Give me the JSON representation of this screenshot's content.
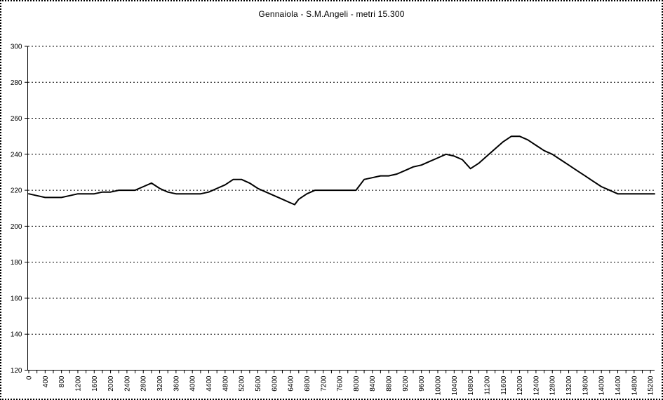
{
  "window": {
    "background_color": "#ffffff",
    "border_color": "#000000",
    "border_style": "dotted"
  },
  "chart_data": {
    "type": "line",
    "title": "Gennaiola - S.M.Angeli - metri 15.300",
    "xlabel": "",
    "ylabel": "",
    "xlim": [
      0,
      15300
    ],
    "ylim": [
      120,
      300
    ],
    "y_ticks": [
      300,
      280,
      260,
      240,
      220,
      200,
      180,
      160,
      140,
      120
    ],
    "y_tick_labels": [
      "300",
      "280",
      "260",
      "240",
      "220",
      "200",
      "180",
      "160",
      "140",
      "120"
    ],
    "x_label_step_m": 400,
    "x_minor_tick_step_m": 200,
    "x_tick_labels": [
      "0",
      "400",
      "800",
      "1200",
      "1600",
      "2000",
      "2400",
      "2800",
      "3200",
      "3600",
      "4000",
      "4400",
      "4800",
      "5200",
      "5600",
      "6000",
      "6400",
      "6800",
      "7200",
      "7600",
      "8000",
      "8400",
      "8800",
      "9200",
      "9600",
      "10000",
      "10400",
      "10800",
      "11200",
      "11600",
      "12000",
      "12400",
      "12800",
      "13200",
      "13600",
      "14000",
      "14400",
      "14800",
      "15200"
    ],
    "grid": "horizontal-dashed",
    "legend": "none",
    "line_color": "#000000",
    "axis_color": "#000000",
    "text_color": "#000000",
    "profile_points_m_elev": [
      [
        0,
        218
      ],
      [
        200,
        217
      ],
      [
        400,
        216
      ],
      [
        600,
        216
      ],
      [
        800,
        216
      ],
      [
        1000,
        217
      ],
      [
        1200,
        218
      ],
      [
        1400,
        218
      ],
      [
        1600,
        218
      ],
      [
        1800,
        219
      ],
      [
        2000,
        219
      ],
      [
        2200,
        220
      ],
      [
        2400,
        220
      ],
      [
        2600,
        220
      ],
      [
        2800,
        222
      ],
      [
        3000,
        224
      ],
      [
        3200,
        221
      ],
      [
        3400,
        219
      ],
      [
        3600,
        218
      ],
      [
        3800,
        218
      ],
      [
        4000,
        218
      ],
      [
        4200,
        218
      ],
      [
        4400,
        219
      ],
      [
        4600,
        221
      ],
      [
        4800,
        223
      ],
      [
        5000,
        226
      ],
      [
        5200,
        226
      ],
      [
        5400,
        224
      ],
      [
        5600,
        221
      ],
      [
        5800,
        219
      ],
      [
        6000,
        217
      ],
      [
        6200,
        215
      ],
      [
        6400,
        213
      ],
      [
        6500,
        212
      ],
      [
        6600,
        215
      ],
      [
        6800,
        218
      ],
      [
        7000,
        220
      ],
      [
        7200,
        220
      ],
      [
        7400,
        220
      ],
      [
        7600,
        220
      ],
      [
        7800,
        220
      ],
      [
        8000,
        220
      ],
      [
        8200,
        226
      ],
      [
        8400,
        227
      ],
      [
        8600,
        228
      ],
      [
        8800,
        228
      ],
      [
        9000,
        229
      ],
      [
        9200,
        231
      ],
      [
        9400,
        233
      ],
      [
        9600,
        234
      ],
      [
        9800,
        236
      ],
      [
        10000,
        238
      ],
      [
        10200,
        240
      ],
      [
        10400,
        239
      ],
      [
        10600,
        237
      ],
      [
        10800,
        232
      ],
      [
        11000,
        235
      ],
      [
        11200,
        239
      ],
      [
        11400,
        243
      ],
      [
        11600,
        247
      ],
      [
        11800,
        250
      ],
      [
        12000,
        250
      ],
      [
        12200,
        248
      ],
      [
        12400,
        245
      ],
      [
        12600,
        242
      ],
      [
        12800,
        240
      ],
      [
        13000,
        237
      ],
      [
        13200,
        234
      ],
      [
        13400,
        231
      ],
      [
        13600,
        228
      ],
      [
        13800,
        225
      ],
      [
        14000,
        222
      ],
      [
        14200,
        220
      ],
      [
        14400,
        218
      ],
      [
        14600,
        218
      ],
      [
        14800,
        218
      ],
      [
        15000,
        218
      ],
      [
        15200,
        218
      ],
      [
        15300,
        218
      ]
    ]
  }
}
